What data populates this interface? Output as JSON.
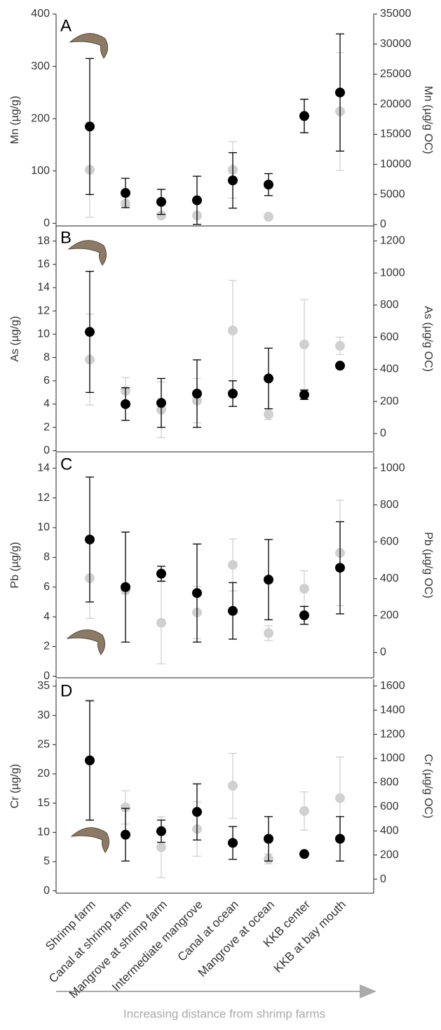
{
  "chart_data": [
    {
      "type": "scatter",
      "panel": "A",
      "ylabel": "Mn (µg/g)",
      "y2label": "Mn (µg/g OC)",
      "ylim": [
        -5,
        400
      ],
      "yticks": [
        0,
        100,
        200,
        300,
        400
      ],
      "y2lim": [
        -233,
        35000
      ],
      "y2ticks": [
        0,
        5000,
        10000,
        15000,
        20000,
        25000,
        30000,
        35000
      ],
      "series": [
        {
          "color": "#d0d0d0",
          "axis": "y2",
          "values": [
            9100,
            3500,
            1500,
            1500,
            9100,
            1300,
            18100,
            18800
          ],
          "errors": [
            7900,
            300,
            300,
            300,
            4700,
            300,
            2800,
            9800
          ]
        },
        {
          "color": "#000000",
          "values": [
            185,
            58,
            41,
            44,
            82,
            74,
            205,
            250
          ],
          "errors": [
            130,
            28,
            24,
            46,
            53,
            21,
            32,
            112
          ]
        }
      ]
    },
    {
      "type": "scatter",
      "panel": "B",
      "ylabel": "As (µg/g)",
      "y2label": "As (µg/g OC)",
      "ylim": [
        -0.1,
        19.3
      ],
      "yticks": [
        0,
        2,
        4,
        6,
        8,
        10,
        12,
        14,
        16,
        18
      ],
      "y2lim": [
        -114,
        1293
      ],
      "y2ticks": [
        0,
        200,
        400,
        600,
        800,
        1000,
        1200
      ],
      "series": [
        {
          "color": "#d0d0d0",
          "axis": "y2",
          "values": [
            461,
            266,
            148,
            205,
            642,
            120,
            555,
            546
          ],
          "errors": [
            283,
            83,
            174,
            138,
            312,
            33,
            279,
            54
          ]
        },
        {
          "color": "#000000",
          "values": [
            10.2,
            4.0,
            4.1,
            4.9,
            4.9,
            6.2,
            4.8,
            7.3
          ],
          "errors": [
            5.2,
            1.4,
            2.1,
            2.9,
            1.1,
            2.6,
            0.4,
            0.2
          ]
        }
      ]
    },
    {
      "type": "scatter",
      "panel": "C",
      "ylabel": "Pb (µg/g)",
      "y2label": "Pb (µg/g OC)",
      "ylim": [
        -0.1,
        15.05
      ],
      "yticks": [
        0,
        2,
        4,
        6,
        8,
        10,
        12,
        14
      ],
      "y2lim": [
        -137,
        1084
      ],
      "y2ticks": [
        0,
        200,
        400,
        600,
        800,
        1000
      ],
      "series": [
        {
          "color": "#d0d0d0",
          "axis": "y2",
          "values": [
            403,
            338,
            161,
            217,
            475,
            105,
            346,
            540
          ],
          "errors": [
            218,
            20,
            222,
            141,
            141,
            40,
            97,
            286
          ]
        },
        {
          "color": "#000000",
          "values": [
            9.2,
            6.0,
            6.9,
            5.6,
            4.4,
            6.5,
            4.1,
            7.3
          ],
          "errors": [
            4.2,
            3.7,
            0.5,
            3.3,
            1.9,
            2.7,
            0.6,
            3.1
          ]
        }
      ]
    },
    {
      "type": "scatter",
      "panel": "D",
      "ylabel": "Cr (µg/g)",
      "y2label": "Cr (µg/g OC)",
      "categories": [
        "Shrimp farm",
        "Canal at shrimp farm",
        "Mangrove at shrimp farm",
        "Intermediate mangrove",
        "Canal at ocean",
        "Mangrove at ocean",
        "KKB center",
        "KKB at bay mouth"
      ],
      "xlabel": "Increasing distance from shrimp farms",
      "ylim": [
        -0.4,
        36.2
      ],
      "yticks": [
        0,
        5,
        10,
        15,
        20,
        25,
        30,
        35
      ],
      "y2lim": [
        -116,
        1657
      ],
      "y2ticks": [
        0,
        200,
        400,
        600,
        800,
        1000,
        1200,
        1400,
        1600
      ],
      "series": [
        {
          "color": "#d0d0d0",
          "axis": "y2",
          "values": [
            987,
            595,
            265,
            415,
            774,
            168,
            565,
            672
          ],
          "errors": [
            500,
            138,
            252,
            225,
            269,
            41,
            158,
            340
          ]
        },
        {
          "color": "#000000",
          "values": [
            22.3,
            9.6,
            10.2,
            13.5,
            8.2,
            8.9,
            6.3,
            8.9
          ],
          "errors": [
            10.2,
            4.5,
            1.9,
            4.8,
            2.8,
            3.8,
            0,
            3.8
          ]
        }
      ]
    }
  ]
}
